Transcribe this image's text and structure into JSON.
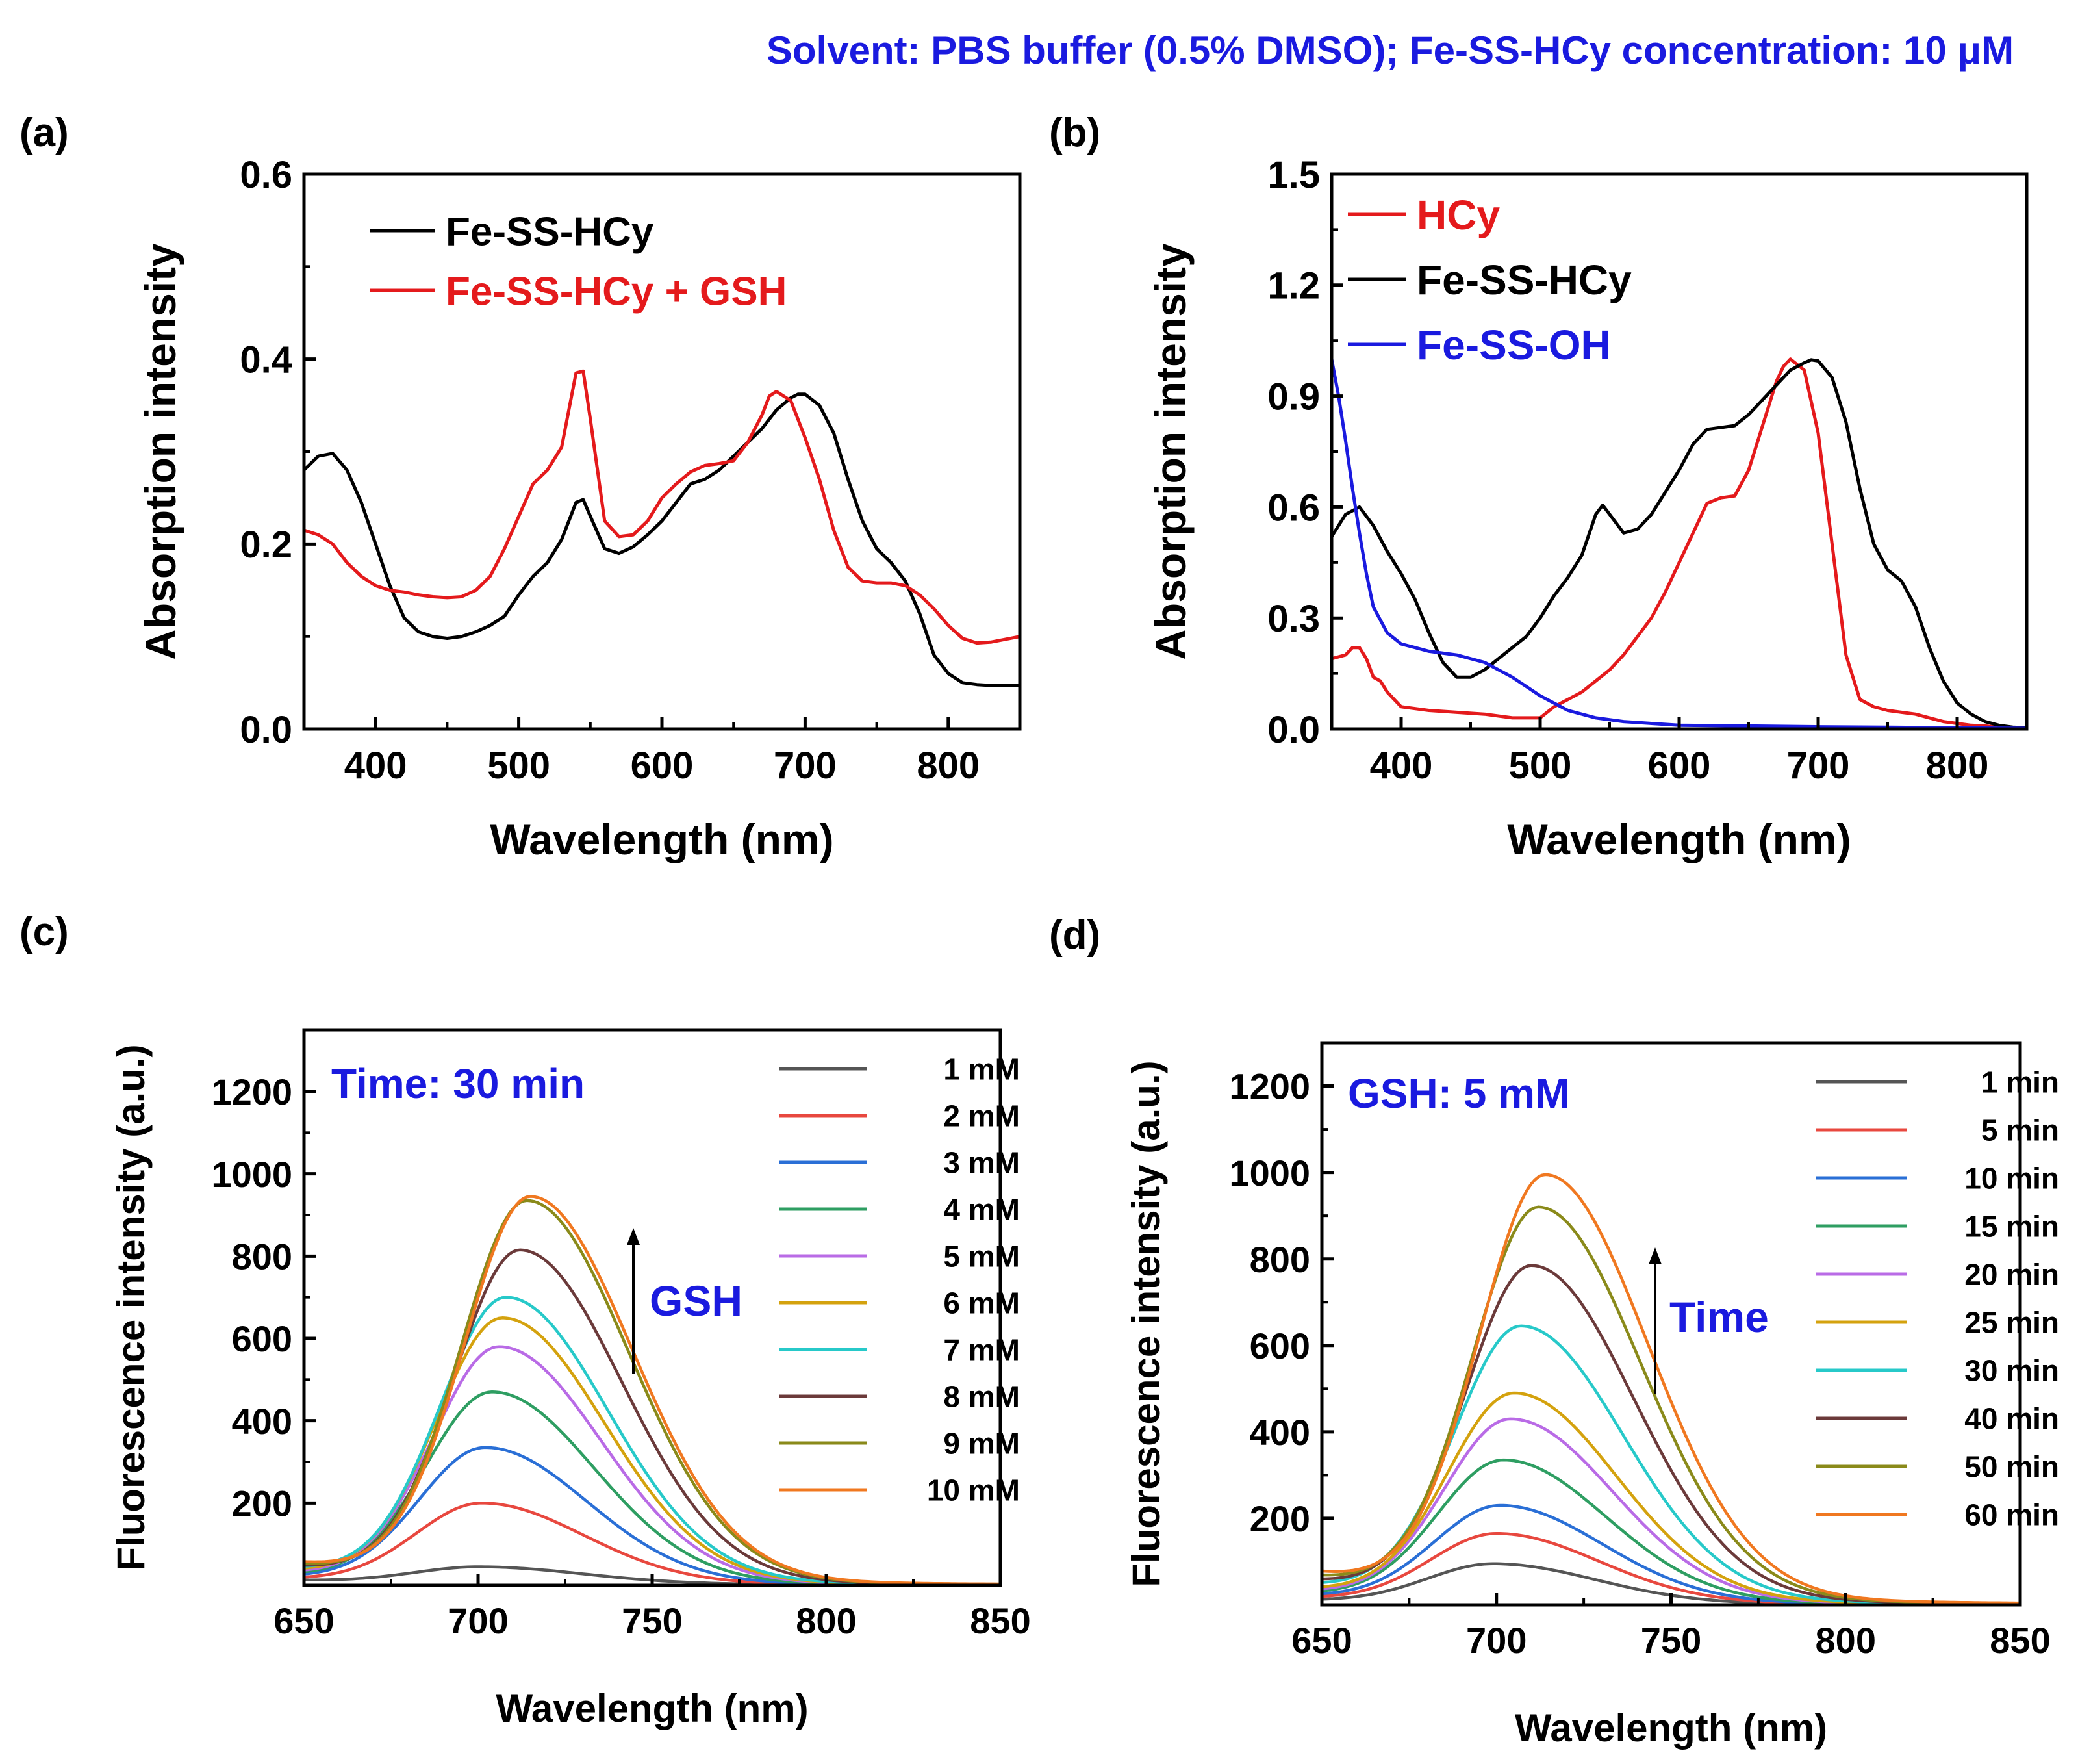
{
  "header": {
    "text": "Solvent: PBS buffer (0.5% DMSO); Fe-SS-HCy concentration: 10 μM",
    "color": "#1a1adf"
  },
  "chart_data": [
    {
      "panel": "(a)",
      "type": "line",
      "xlabel": "Wavelength (nm)",
      "ylabel": "Absorption intensity",
      "xlim": [
        350,
        850
      ],
      "ylim": [
        0,
        0.6
      ],
      "xticks": [
        400,
        500,
        600,
        700,
        800
      ],
      "yticks": [
        0.0,
        0.2,
        0.4,
        0.6
      ],
      "ytick_labels": [
        "0.0",
        "0.2",
        "0.4",
        "0.6"
      ],
      "legend_position": "top-left",
      "series": [
        {
          "name": "Fe-SS-HCy",
          "color": "#000000",
          "label_color": "#000000",
          "x": [
            350,
            360,
            370,
            380,
            390,
            400,
            410,
            420,
            430,
            440,
            450,
            460,
            470,
            480,
            490,
            500,
            510,
            520,
            530,
            540,
            545,
            550,
            560,
            570,
            580,
            590,
            600,
            610,
            620,
            630,
            640,
            650,
            660,
            670,
            680,
            690,
            695,
            700,
            710,
            720,
            730,
            740,
            750,
            760,
            770,
            780,
            790,
            800,
            810,
            820,
            830,
            840,
            850
          ],
          "y": [
            0.28,
            0.295,
            0.298,
            0.28,
            0.245,
            0.2,
            0.155,
            0.12,
            0.105,
            0.1,
            0.098,
            0.1,
            0.105,
            0.112,
            0.122,
            0.145,
            0.165,
            0.18,
            0.205,
            0.245,
            0.248,
            0.23,
            0.195,
            0.19,
            0.197,
            0.21,
            0.225,
            0.245,
            0.265,
            0.27,
            0.28,
            0.295,
            0.31,
            0.325,
            0.345,
            0.358,
            0.362,
            0.362,
            0.35,
            0.32,
            0.27,
            0.225,
            0.195,
            0.18,
            0.16,
            0.125,
            0.08,
            0.06,
            0.05,
            0.048,
            0.047,
            0.047,
            0.047
          ]
        },
        {
          "name": "Fe-SS-HCy + GSH",
          "color": "#e41a1c",
          "label_color": "#e41a1c",
          "x": [
            350,
            360,
            370,
            380,
            390,
            400,
            410,
            420,
            430,
            440,
            450,
            460,
            470,
            480,
            490,
            500,
            510,
            520,
            530,
            535,
            540,
            545,
            550,
            560,
            570,
            580,
            590,
            600,
            610,
            620,
            630,
            640,
            650,
            660,
            670,
            675,
            680,
            690,
            700,
            710,
            720,
            730,
            740,
            750,
            760,
            770,
            780,
            790,
            800,
            810,
            820,
            830,
            840,
            850
          ],
          "y": [
            0.215,
            0.21,
            0.2,
            0.18,
            0.165,
            0.155,
            0.15,
            0.148,
            0.145,
            0.143,
            0.142,
            0.143,
            0.15,
            0.165,
            0.195,
            0.23,
            0.265,
            0.28,
            0.305,
            0.345,
            0.385,
            0.387,
            0.335,
            0.225,
            0.208,
            0.21,
            0.225,
            0.25,
            0.265,
            0.278,
            0.285,
            0.287,
            0.29,
            0.31,
            0.34,
            0.36,
            0.365,
            0.355,
            0.315,
            0.27,
            0.215,
            0.175,
            0.16,
            0.158,
            0.158,
            0.155,
            0.145,
            0.13,
            0.112,
            0.098,
            0.093,
            0.094,
            0.097,
            0.1
          ]
        }
      ]
    },
    {
      "panel": "(b)",
      "type": "line",
      "xlabel": "Wavelength (nm)",
      "ylabel": "Absorption intensity",
      "xlim": [
        350,
        850
      ],
      "ylim": [
        0,
        1.5
      ],
      "xticks": [
        400,
        500,
        600,
        700,
        800
      ],
      "yticks": [
        0.0,
        0.3,
        0.6,
        0.9,
        1.2,
        1.5
      ],
      "ytick_labels": [
        "0.0",
        "0.3",
        "0.6",
        "0.9",
        "1.2",
        "1.5"
      ],
      "legend_position": "top-left",
      "series": [
        {
          "name": "HCy",
          "color": "#e41a1c",
          "label_color": "#e41a1c",
          "x": [
            350,
            360,
            365,
            370,
            375,
            380,
            385,
            390,
            400,
            420,
            440,
            460,
            480,
            500,
            510,
            520,
            530,
            540,
            550,
            560,
            570,
            580,
            590,
            600,
            610,
            620,
            630,
            640,
            650,
            660,
            670,
            675,
            680,
            690,
            700,
            710,
            720,
            730,
            740,
            750,
            760,
            770,
            780,
            790,
            800,
            810,
            820,
            830,
            840,
            850
          ],
          "y": [
            0.19,
            0.2,
            0.22,
            0.22,
            0.19,
            0.14,
            0.13,
            0.1,
            0.06,
            0.05,
            0.045,
            0.04,
            0.03,
            0.03,
            0.06,
            0.08,
            0.1,
            0.13,
            0.16,
            0.2,
            0.25,
            0.3,
            0.37,
            0.45,
            0.53,
            0.61,
            0.625,
            0.63,
            0.7,
            0.82,
            0.94,
            0.98,
            1.0,
            0.97,
            0.8,
            0.5,
            0.2,
            0.08,
            0.06,
            0.05,
            0.045,
            0.04,
            0.03,
            0.02,
            0.015,
            0.01,
            0.008,
            0.005,
            0.003,
            0.002
          ]
        },
        {
          "name": "Fe-SS-HCy",
          "color": "#000000",
          "label_color": "#000000",
          "x": [
            350,
            360,
            370,
            380,
            390,
            400,
            410,
            420,
            430,
            440,
            450,
            460,
            470,
            480,
            490,
            500,
            510,
            520,
            530,
            540,
            545,
            550,
            560,
            570,
            580,
            590,
            600,
            610,
            620,
            630,
            640,
            650,
            660,
            670,
            680,
            690,
            695,
            700,
            710,
            720,
            730,
            740,
            750,
            760,
            770,
            780,
            790,
            800,
            810,
            820,
            830,
            840,
            850
          ],
          "y": [
            0.52,
            0.58,
            0.6,
            0.55,
            0.48,
            0.42,
            0.35,
            0.26,
            0.18,
            0.14,
            0.14,
            0.16,
            0.19,
            0.22,
            0.25,
            0.3,
            0.36,
            0.41,
            0.47,
            0.58,
            0.605,
            0.58,
            0.53,
            0.54,
            0.58,
            0.64,
            0.7,
            0.77,
            0.81,
            0.815,
            0.82,
            0.85,
            0.89,
            0.93,
            0.97,
            0.99,
            0.998,
            0.995,
            0.95,
            0.83,
            0.65,
            0.5,
            0.43,
            0.4,
            0.33,
            0.22,
            0.13,
            0.07,
            0.04,
            0.02,
            0.01,
            0.005,
            0.003
          ]
        },
        {
          "name": "Fe-SS-OH",
          "color": "#1a1adf",
          "label_color": "#1a1adf",
          "x": [
            350,
            355,
            360,
            365,
            370,
            375,
            380,
            390,
            400,
            410,
            420,
            440,
            460,
            480,
            500,
            520,
            540,
            560,
            580,
            600,
            650,
            700,
            750,
            800,
            850
          ],
          "y": [
            1.0,
            0.9,
            0.78,
            0.65,
            0.53,
            0.42,
            0.33,
            0.26,
            0.23,
            0.22,
            0.21,
            0.2,
            0.18,
            0.14,
            0.09,
            0.05,
            0.03,
            0.02,
            0.015,
            0.01,
            0.008,
            0.006,
            0.005,
            0.003,
            0.002
          ]
        }
      ]
    },
    {
      "panel": "(c)",
      "type": "line",
      "xlabel": "Wavelength (nm)",
      "ylabel": "Fluorescence intensity (a.u.)",
      "xlim": [
        650,
        850
      ],
      "ylim": [
        0,
        1350
      ],
      "xticks": [
        650,
        700,
        750,
        800,
        850
      ],
      "yticks": [
        200,
        400,
        600,
        800,
        1000,
        1200
      ],
      "annotation": {
        "text": "Time: 30 min",
        "color": "#1a1adf",
        "position": "top-left"
      },
      "arrow_label": {
        "text": "GSH",
        "color": "#1a1adf",
        "direction": "up"
      },
      "legend_position": "top-right",
      "series": [
        {
          "name": "1 mM",
          "color": "#555555",
          "peak": 45,
          "center": 700,
          "baseline": 12
        },
        {
          "name": "2 mM",
          "color": "#e8483f",
          "peak": 200,
          "center": 701,
          "baseline": 15
        },
        {
          "name": "3 mM",
          "color": "#2a6fd6",
          "peak": 335,
          "center": 702,
          "baseline": 20
        },
        {
          "name": "4 mM",
          "color": "#2e9e62",
          "peak": 470,
          "center": 704,
          "baseline": 25
        },
        {
          "name": "5 mM",
          "color": "#b96be6",
          "peak": 580,
          "center": 706,
          "baseline": 30
        },
        {
          "name": "6 mM",
          "color": "#d4a20e",
          "peak": 650,
          "center": 707,
          "baseline": 35
        },
        {
          "name": "7 mM",
          "color": "#27c9c9",
          "peak": 700,
          "center": 708,
          "baseline": 40
        },
        {
          "name": "8 mM",
          "color": "#6b3a3a",
          "peak": 815,
          "center": 712,
          "baseline": 45
        },
        {
          "name": "9 mM",
          "color": "#8a8a1a",
          "peak": 935,
          "center": 714,
          "baseline": 50
        },
        {
          "name": "10 mM",
          "color": "#f07820",
          "peak": 945,
          "center": 715,
          "baseline": 55
        }
      ]
    },
    {
      "panel": "(d)",
      "type": "line",
      "xlabel": "Wavelength (nm)",
      "ylabel": "Fluorescence intensity (a.u.)",
      "xlim": [
        650,
        850
      ],
      "ylim": [
        0,
        1300
      ],
      "xticks": [
        650,
        700,
        750,
        800,
        850
      ],
      "yticks": [
        200,
        400,
        600,
        800,
        1000,
        1200
      ],
      "annotation": {
        "text": "GSH: 5 mM",
        "color": "#1a1adf",
        "position": "top-left"
      },
      "arrow_label": {
        "text": "Time",
        "color": "#1a1adf",
        "direction": "up"
      },
      "legend_position": "top-right",
      "series": [
        {
          "name": "1 min",
          "color": "#555555",
          "peak": 95,
          "center": 699,
          "baseline": 10
        },
        {
          "name": "5 min",
          "color": "#e8483f",
          "peak": 165,
          "center": 700,
          "baseline": 15
        },
        {
          "name": "10 min",
          "color": "#2a6fd6",
          "peak": 230,
          "center": 701,
          "baseline": 20
        },
        {
          "name": "15 min",
          "color": "#2e9e62",
          "peak": 335,
          "center": 702,
          "baseline": 25
        },
        {
          "name": "20 min",
          "color": "#b96be6",
          "peak": 430,
          "center": 704,
          "baseline": 30
        },
        {
          "name": "25 min",
          "color": "#d4a20e",
          "peak": 490,
          "center": 705,
          "baseline": 35
        },
        {
          "name": "30 min",
          "color": "#27c9c9",
          "peak": 645,
          "center": 707,
          "baseline": 45
        },
        {
          "name": "40 min",
          "color": "#6b3a3a",
          "peak": 785,
          "center": 710,
          "baseline": 55
        },
        {
          "name": "50 min",
          "color": "#8a8a1a",
          "peak": 920,
          "center": 712,
          "baseline": 65
        },
        {
          "name": "60 min",
          "color": "#f07820",
          "peak": 995,
          "center": 714,
          "baseline": 75
        }
      ]
    }
  ]
}
